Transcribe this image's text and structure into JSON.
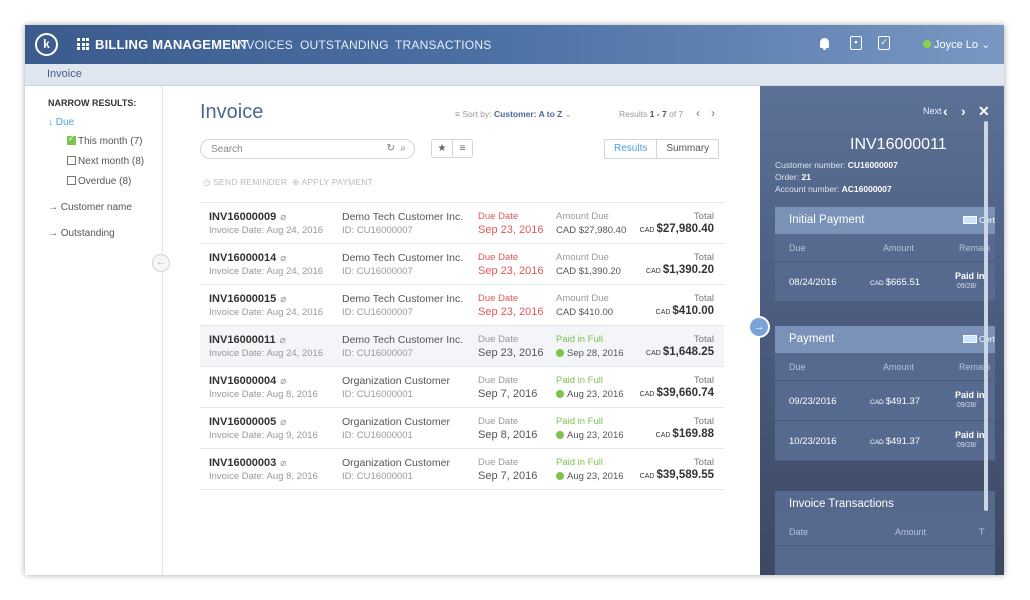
{
  "topbar": {
    "logo": "k",
    "app_title": "BILLING MANAGEMENT",
    "nav": [
      "INVOICES",
      "OUTSTANDING",
      "TRANSACTIONS"
    ],
    "user": "Joyce Lo",
    "user_caret": "⌄"
  },
  "breadcrumb": "Invoice",
  "filters": {
    "title": "NARROW RESULTS:",
    "due": "Due",
    "options": [
      "This month (7)",
      "Next month (8)",
      "Overdue (8)"
    ],
    "links": [
      "Customer name",
      "Outstanding"
    ]
  },
  "main": {
    "title": "Invoice",
    "sort_label": "Sort by:",
    "sort_value": "Customer: A to Z",
    "results_label": "Results",
    "results_range": "1 - 7",
    "results_total": "of 7",
    "search_placeholder": "Search",
    "results_tab": "Results",
    "summary_tab": "Summary",
    "send_reminder": "SEND REMINDER",
    "apply_payment": "APPLY PAYMENT"
  },
  "invoices": [
    {
      "id": "INV16000009",
      "invoice_date": "Invoice Date: Aug 24, 2016",
      "customer": "Demo Tech Customer Inc.",
      "customer_id": "ID: CU16000007",
      "due_label": "Due Date",
      "due_date": "Sep 23, 2016",
      "amount_label": "Amount Due",
      "amount": "CAD $27,980.40",
      "total_label": "Total",
      "total_currency": "CAD",
      "total": "$27,980.40",
      "status": "overdue"
    },
    {
      "id": "INV16000014",
      "invoice_date": "Invoice Date: Aug 24, 2016",
      "customer": "Demo Tech Customer Inc.",
      "customer_id": "ID: CU16000007",
      "due_label": "Due Date",
      "due_date": "Sep 23, 2016",
      "amount_label": "Amount Due",
      "amount": "CAD $1,390.20",
      "total_label": "Total",
      "total_currency": "CAD",
      "total": "$1,390.20",
      "status": "overdue"
    },
    {
      "id": "INV16000015",
      "invoice_date": "Invoice Date: Aug 24, 2016",
      "customer": "Demo Tech Customer Inc.",
      "customer_id": "ID: CU16000007",
      "due_label": "Due Date",
      "due_date": "Sep 23, 2016",
      "amount_label": "Amount Due",
      "amount": "CAD $410.00",
      "total_label": "Total",
      "total_currency": "CAD",
      "total": "$410.00",
      "status": "overdue"
    },
    {
      "id": "INV16000011",
      "invoice_date": "Invoice Date: Aug 24, 2016",
      "customer": "Demo Tech Customer Inc.",
      "customer_id": "ID: CU16000007",
      "due_label": "Due Date",
      "due_date": "Sep 23, 2016",
      "amount_label": "Paid in Full",
      "amount": "Sep 28, 2016",
      "total_label": "Total",
      "total_currency": "CAD",
      "total": "$1,648.25",
      "status": "paid"
    },
    {
      "id": "INV16000004",
      "invoice_date": "Invoice Date: Aug 8, 2016",
      "customer": "Organization Customer",
      "customer_id": "ID: CU16000001",
      "due_label": "Due Date",
      "due_date": "Sep 7, 2016",
      "amount_label": "Paid in Full",
      "amount": "Aug 23, 2016",
      "total_label": "Total",
      "total_currency": "CAD",
      "total": "$39,660.74",
      "status": "paid"
    },
    {
      "id": "INV16000005",
      "invoice_date": "Invoice Date: Aug 9, 2016",
      "customer": "Organization Customer",
      "customer_id": "ID: CU16000001",
      "due_label": "Due Date",
      "due_date": "Sep 8, 2016",
      "amount_label": "Paid in Full",
      "amount": "Aug 23, 2016",
      "total_label": "Total",
      "total_currency": "CAD",
      "total": "$169.88",
      "status": "paid"
    },
    {
      "id": "INV16000003",
      "invoice_date": "Invoice Date: Aug 8, 2016",
      "customer": "Organization Customer",
      "customer_id": "ID: CU16000001",
      "due_label": "Due Date",
      "due_date": "Sep 7, 2016",
      "amount_label": "Paid in Full",
      "amount": "Aug 23, 2016",
      "total_label": "Total",
      "total_currency": "CAD",
      "total": "$39,589.55",
      "status": "paid"
    }
  ],
  "detail": {
    "next_label": "Next",
    "invoice_id": "INV16000011",
    "customer_number_label": "Customer number:",
    "customer_number": "CU16000007",
    "order_label": "Order:",
    "order": "21",
    "account_number_label": "Account number:",
    "account_number": "AC16000007",
    "initial_payment": {
      "title": "Initial Payment",
      "cert": "Cert",
      "cols": [
        "Due",
        "Amount",
        "Remain"
      ],
      "rows": [
        {
          "date": "08/24/2016",
          "currency": "CAD",
          "amount": "$665.51",
          "remain": "Paid in",
          "remain_date": "09/28/"
        }
      ]
    },
    "payment": {
      "title": "Payment",
      "cert": "Cert",
      "cols": [
        "Due",
        "Amount",
        "Remain"
      ],
      "rows": [
        {
          "date": "09/23/2016",
          "currency": "CAD",
          "amount": "$491.37",
          "remain": "Paid in",
          "remain_date": "09/28/"
        },
        {
          "date": "10/23/2016",
          "currency": "CAD",
          "amount": "$491.37",
          "remain": "Paid in",
          "remain_date": "09/28/"
        }
      ]
    },
    "transactions": {
      "title": "Invoice Transactions",
      "cols": [
        "Date",
        "Amount",
        "T"
      ]
    }
  },
  "icons": {
    "grid": "grid-icon",
    "bell": "bell-icon",
    "calendar": "calendar-icon",
    "clipboard": "clipboard-icon",
    "attachment": "paperclip-icon",
    "refresh": "refresh-icon",
    "search": "search-icon",
    "star": "star-icon",
    "list": "list-icon"
  },
  "colors": {
    "topbar": "#3c5b8d",
    "accent": "#4f9ee0",
    "overdue": "#e25858",
    "paid": "#7dc34d",
    "panel": "#4d5f82"
  }
}
